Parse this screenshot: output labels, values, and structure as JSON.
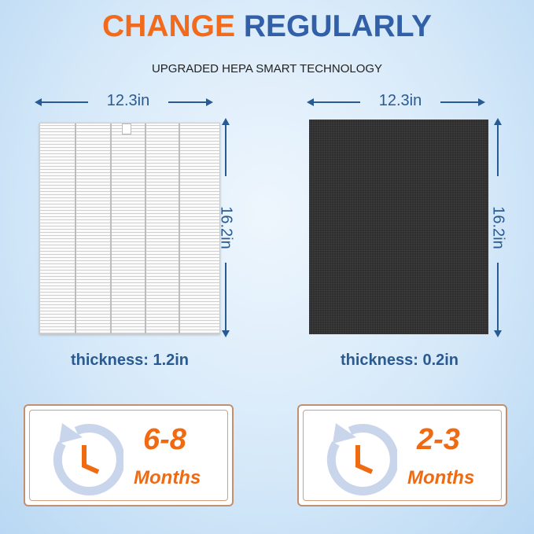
{
  "header": {
    "title_part1": "CHANGE",
    "title_part2": "REGULARLY",
    "subtitle": "UPGRADED HEPA SMART TECHNOLOGY"
  },
  "colors": {
    "orange": "#f26b1d",
    "blue": "#3160a8",
    "dimension_blue": "#2a5a92",
    "box_border": "#c09070",
    "clock_ring": "#c9d5ea"
  },
  "hepa_filter": {
    "width": "12.3in",
    "height": "16.2in",
    "thickness": "thickness: 1.2in",
    "interval": "6-8",
    "unit": "Months"
  },
  "carbon_filter": {
    "width": "12.3in",
    "height": "16.2in",
    "thickness": "thickness: 0.2in",
    "interval": "2-3",
    "unit": "Months"
  },
  "icons": {
    "replace": "clock-rotate-icon"
  }
}
